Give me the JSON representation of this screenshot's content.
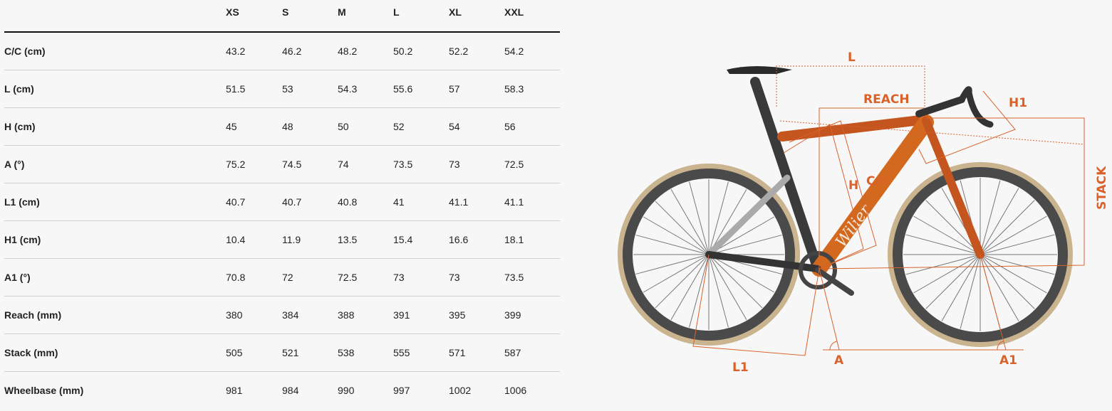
{
  "table": {
    "sizes": [
      "XS",
      "S",
      "M",
      "L",
      "XL",
      "XXL"
    ],
    "rows": [
      {
        "label": "C/C (cm)",
        "values": [
          "43.2",
          "46.2",
          "48.2",
          "50.2",
          "52.2",
          "54.2"
        ]
      },
      {
        "label": "L (cm)",
        "values": [
          "51.5",
          "53",
          "54.3",
          "55.6",
          "57",
          "58.3"
        ]
      },
      {
        "label": "H (cm)",
        "values": [
          "45",
          "48",
          "50",
          "52",
          "54",
          "56"
        ]
      },
      {
        "label": "A (°)",
        "values": [
          "75.2",
          "74.5",
          "74",
          "73.5",
          "73",
          "72.5"
        ]
      },
      {
        "label": "L1 (cm)",
        "values": [
          "40.7",
          "40.7",
          "40.8",
          "41",
          "41.1",
          "41.1"
        ]
      },
      {
        "label": "H1 (cm)",
        "values": [
          "10.4",
          "11.9",
          "13.5",
          "15.4",
          "16.6",
          "18.1"
        ]
      },
      {
        "label": "A1 (°)",
        "values": [
          "70.8",
          "72",
          "72.5",
          "73",
          "73",
          "73.5"
        ]
      },
      {
        "label": "Reach (mm)",
        "values": [
          "380",
          "384",
          "388",
          "391",
          "395",
          "399"
        ]
      },
      {
        "label": "Stack (mm)",
        "values": [
          "505",
          "521",
          "538",
          "555",
          "571",
          "587"
        ]
      },
      {
        "label": "Wheelbase (mm)",
        "values": [
          "981",
          "984",
          "990",
          "997",
          "1002",
          "1006"
        ]
      }
    ]
  },
  "diagram": {
    "labels": {
      "l": "L",
      "reach": "REACH",
      "h1": "H1",
      "stack": "STACK",
      "h": "H",
      "cc": "C/C",
      "l1": "L1",
      "a": "A",
      "a1": "A1"
    },
    "brand": "Wilier",
    "accent": "#d9622b"
  }
}
